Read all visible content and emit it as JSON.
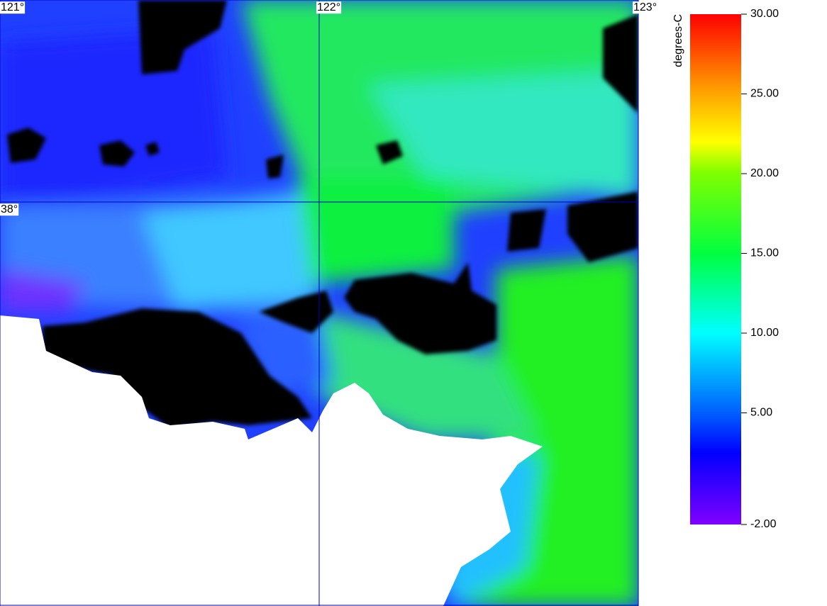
{
  "map": {
    "lon_lim": [
      121,
      123
    ],
    "lat_lim": [
      38.5,
      37.0
    ],
    "lon_lines": [
      {
        "value": 121,
        "label": "121°"
      },
      {
        "value": 122,
        "label": "122°"
      },
      {
        "value": 123,
        "label": "123°"
      }
    ],
    "lat_lines": [
      {
        "value": 38,
        "label": "38°"
      }
    ],
    "colorbar": {
      "label": "degrees-C",
      "lim": [
        -2,
        30
      ],
      "ticks": [
        {
          "value": 30,
          "label": "30.00"
        },
        {
          "value": 25,
          "label": "25.00"
        },
        {
          "value": 20,
          "label": "20.00"
        },
        {
          "value": 15,
          "label": "15.00"
        },
        {
          "value": 10,
          "label": "10.00"
        },
        {
          "value": 5,
          "label": "5.00"
        },
        {
          "value": -2,
          "label": "-2.00"
        }
      ]
    }
  }
}
